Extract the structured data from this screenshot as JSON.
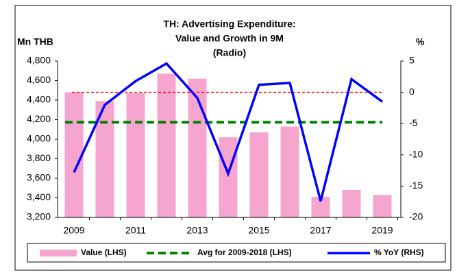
{
  "chart_data": {
    "type": "bar",
    "title": [
      "TH: Advertising Expenditure:",
      "Value and Growth in 9M",
      "(Radio)"
    ],
    "y_label": "Mn THB",
    "y2_label": "%",
    "categories": [
      "2009",
      null,
      "2011",
      null,
      "2013",
      null,
      "2015",
      null,
      "2017",
      null,
      "2019"
    ],
    "series": [
      {
        "name": "Value (LHS)",
        "type": "bar",
        "color": "#f6a5cf",
        "values": [
          4480,
          4390,
          4470,
          4670,
          4620,
          4020,
          4070,
          4130,
          3410,
          3480,
          3430
        ]
      },
      {
        "name": "Avg for 2009-2018 (LHS)",
        "type": "hline",
        "color": "#008000",
        "value": 4174
      },
      {
        "name": "% YoY (RHS)",
        "type": "line",
        "axis": "y2",
        "color": "#0000ff",
        "values": [
          -12.8,
          -2.0,
          1.8,
          4.6,
          -0.9,
          -13.0,
          1.2,
          1.5,
          -17.4,
          2.1,
          -1.5
        ]
      }
    ],
    "y2_reference": {
      "value": 0,
      "color": "#ff0000"
    },
    "ylim": [
      3200,
      4800
    ],
    "yticks": [
      {
        "value": 3200,
        "label": "3,200"
      },
      {
        "value": 3400,
        "label": "3,400"
      },
      {
        "value": 3600,
        "label": "3,600"
      },
      {
        "value": 3800,
        "label": "3,800"
      },
      {
        "value": 4000,
        "label": "4,000"
      },
      {
        "value": 4200,
        "label": "4,200"
      },
      {
        "value": 4400,
        "label": "4,400"
      },
      {
        "value": 4600,
        "label": "4,600"
      },
      {
        "value": 4800,
        "label": "4,800"
      }
    ],
    "y2lim": [
      -20,
      5
    ],
    "y2ticks": [
      -20,
      -15,
      -10,
      -5,
      0,
      5
    ],
    "grid": false,
    "legend": "bottom"
  }
}
